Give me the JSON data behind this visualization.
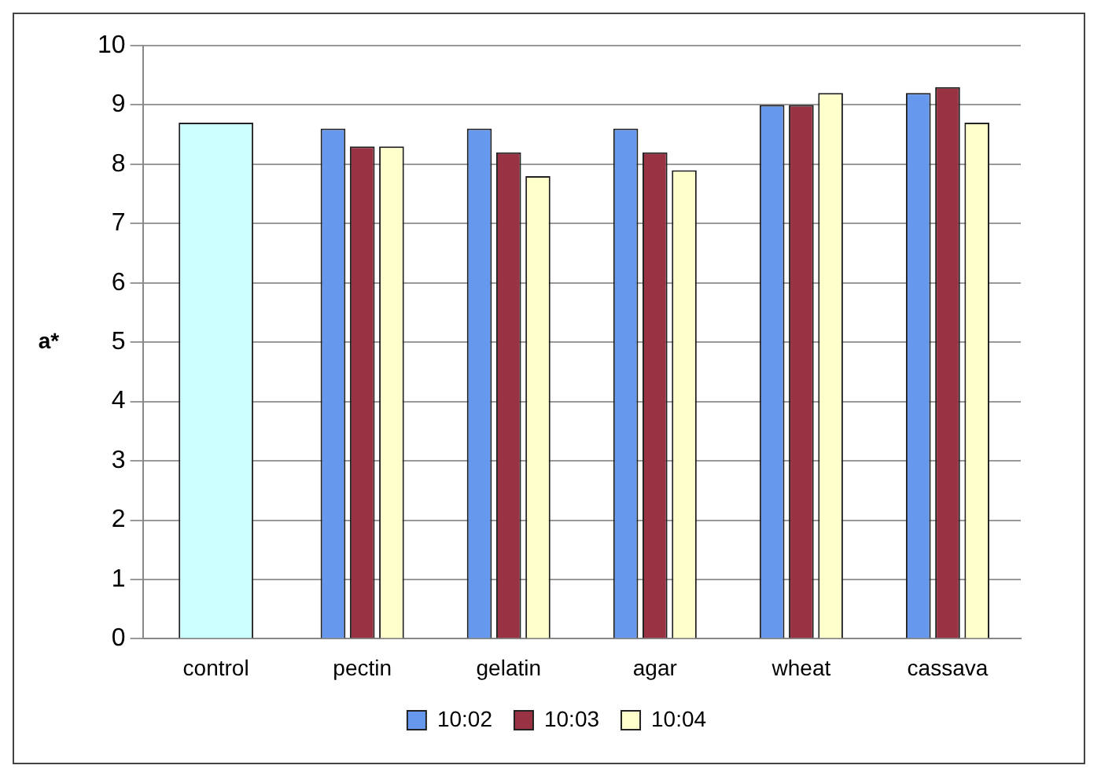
{
  "chart_data": {
    "type": "bar",
    "ylabel": "a*",
    "categories": [
      "control",
      "pectin",
      "gelatin",
      "agar",
      "wheat",
      "cassava"
    ],
    "series": [
      {
        "color": "#ccffff",
        "values": [
          8.7,
          null,
          null,
          null,
          null,
          null
        ]
      },
      {
        "name": "10:02",
        "color": "#6699ee",
        "values": [
          null,
          8.6,
          8.6,
          8.6,
          9.0,
          9.2
        ]
      },
      {
        "name": "10:03",
        "color": "#993344",
        "values": [
          null,
          8.3,
          8.2,
          8.2,
          9.0,
          9.3
        ]
      },
      {
        "name": "10:04",
        "color": "#ffffcc",
        "values": [
          null,
          8.3,
          7.8,
          7.9,
          9.2,
          8.7
        ]
      }
    ],
    "ylim": [
      0,
      10
    ],
    "yticks": [
      0,
      1,
      2,
      3,
      4,
      5,
      6,
      7,
      8,
      9,
      10
    ],
    "grid": "y",
    "legend": "bottom"
  }
}
